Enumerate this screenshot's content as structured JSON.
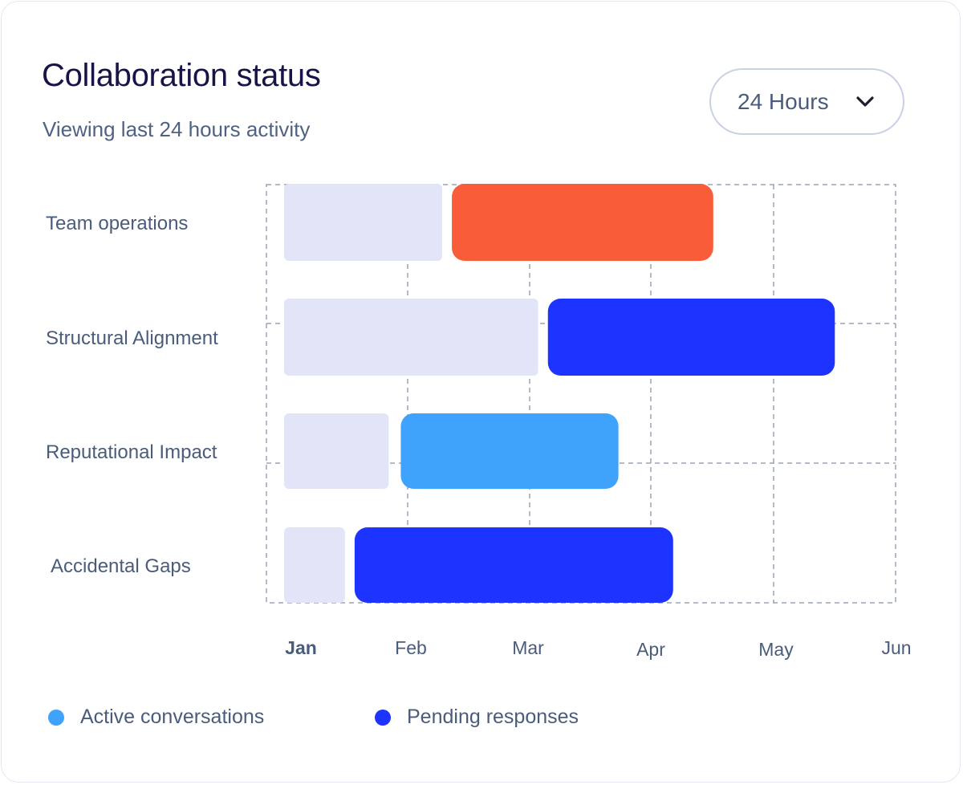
{
  "card": {
    "title": "Collaboration status",
    "subtitle": "Viewing last 24 hours activity"
  },
  "range_select": {
    "label": "24 Hours",
    "icon": "chevron-down-icon"
  },
  "chart_data": {
    "type": "bar",
    "orientation": "horizontal-stacked-timeline",
    "title": "",
    "xlabel": "",
    "ylabel": "",
    "x_ticks": [
      "Jan",
      "Feb",
      "Mar",
      "Apr",
      "May",
      "Jun"
    ],
    "x_tick_bold": "Jan",
    "xlim": [
      0,
      5
    ],
    "grid": true,
    "categories": [
      "Team operations",
      "Structural Alignment",
      "Reputational Impact",
      "Accidental Gaps"
    ],
    "rows": [
      {
        "label": "Team operations",
        "segments": [
          {
            "start": 0.0,
            "end": 1.3,
            "status": "idle",
            "color": "#e2e4f8"
          },
          {
            "start": 1.38,
            "end": 3.53,
            "status": "highlight",
            "color": "#f95c39"
          }
        ]
      },
      {
        "label": "Structural Alignment",
        "segments": [
          {
            "start": 0.0,
            "end": 2.09,
            "status": "idle",
            "color": "#e2e4f8"
          },
          {
            "start": 2.17,
            "end": 4.53,
            "status": "pending",
            "color": "#1d33ff"
          }
        ]
      },
      {
        "label": "Reputational Impact",
        "segments": [
          {
            "start": 0.0,
            "end": 0.86,
            "status": "idle",
            "color": "#e2e4f8"
          },
          {
            "start": 0.96,
            "end": 2.75,
            "status": "active",
            "color": "#3fa2fb"
          }
        ]
      },
      {
        "label": "Accidental Gaps",
        "segments": [
          {
            "start": 0.0,
            "end": 0.5,
            "status": "idle",
            "color": "#e2e4f8"
          },
          {
            "start": 0.58,
            "end": 3.2,
            "status": "pending",
            "color": "#1d33ff"
          }
        ]
      }
    ],
    "legend": [
      {
        "name": "Active conversations",
        "color": "#3fa2fb"
      },
      {
        "name": "Pending responses",
        "color": "#1d33ff"
      }
    ],
    "legend_position": "bottom-left"
  },
  "colors": {
    "title": "#171447",
    "text": "#4a5c7c",
    "grid": "#9aa3b8"
  }
}
